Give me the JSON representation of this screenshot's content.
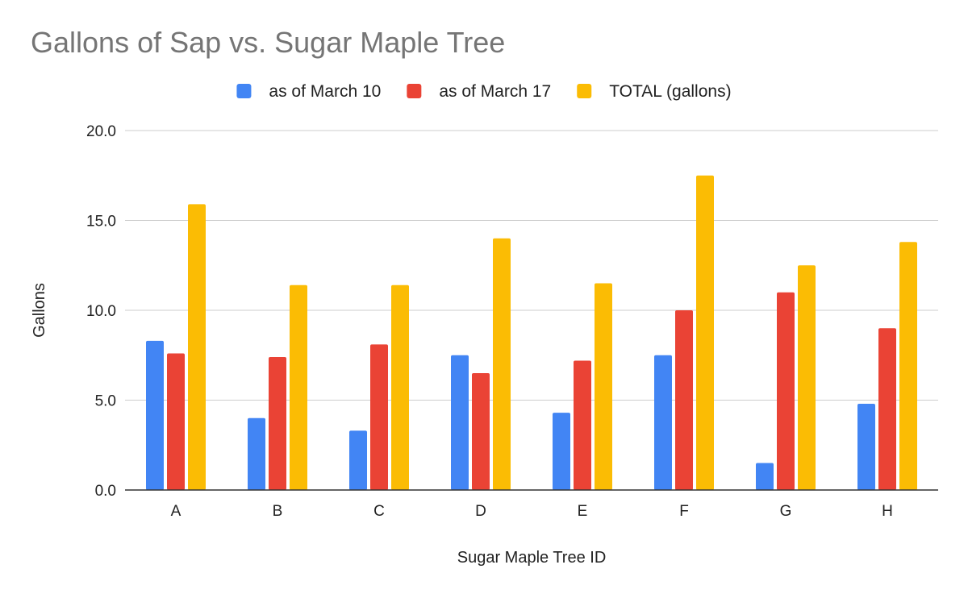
{
  "chart_data": {
    "type": "bar",
    "title": "Gallons of Sap vs. Sugar Maple Tree",
    "xlabel": "Sugar Maple Tree ID",
    "ylabel": "Gallons",
    "categories": [
      "A",
      "B",
      "C",
      "D",
      "E",
      "F",
      "G",
      "H"
    ],
    "series": [
      {
        "name": "as of March 10",
        "color": "#4285F4",
        "values": [
          8.3,
          4.0,
          3.3,
          7.5,
          4.3,
          7.5,
          1.5,
          4.8
        ]
      },
      {
        "name": "as of March 17",
        "color": "#EA4335",
        "values": [
          7.6,
          7.4,
          8.1,
          6.5,
          7.2,
          10.0,
          11.0,
          9.0
        ]
      },
      {
        "name": "TOTAL (gallons)",
        "color": "#FBBC04",
        "values": [
          15.9,
          11.4,
          11.4,
          14.0,
          11.5,
          17.5,
          12.5,
          13.8
        ]
      }
    ],
    "ylim": [
      0,
      20
    ],
    "yticks": [
      "0.0",
      "5.0",
      "10.0",
      "15.0",
      "20.0"
    ],
    "grid": true,
    "legend_position": "top"
  }
}
